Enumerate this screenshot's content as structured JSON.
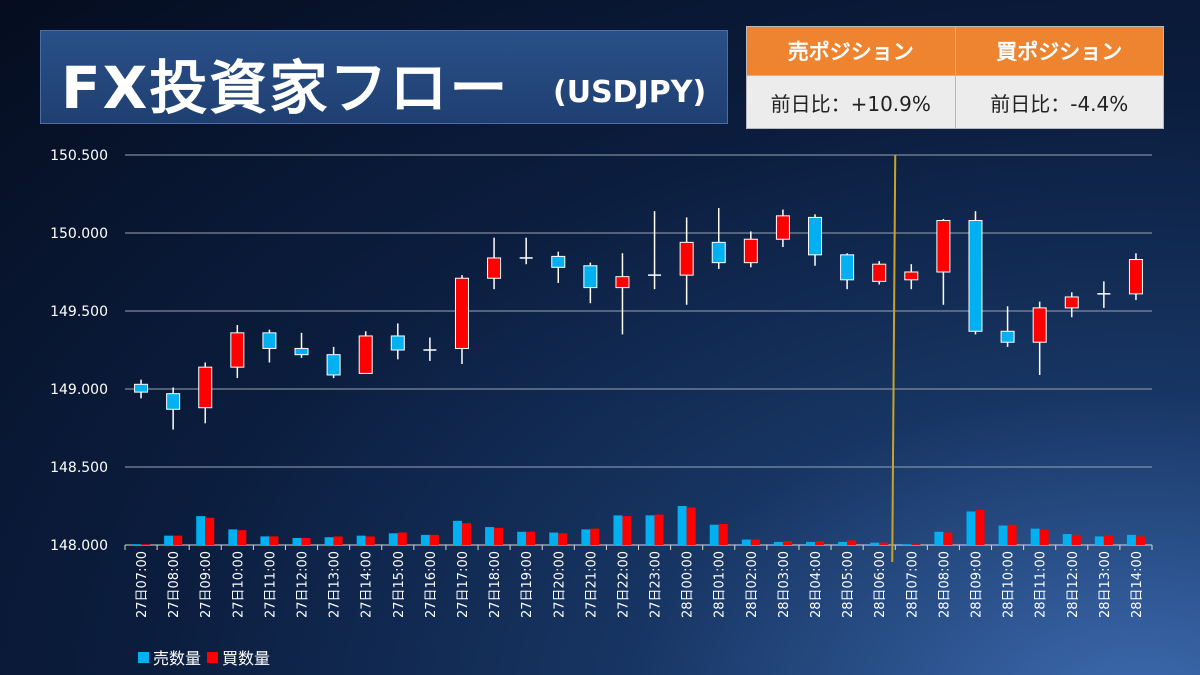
{
  "header": {
    "title": "FX投資家フロー",
    "subtitle": "(USDJPY)"
  },
  "positions": {
    "sell_header": "売ポジション",
    "buy_header": "買ポジション",
    "sell_value": "前日比：+10.9%",
    "buy_value": "前日比：-4.4%"
  },
  "colors": {
    "up": "#ff0000",
    "down": "#00b0f0",
    "marker": "#c9a227"
  },
  "chart_data": {
    "type": "candlestick+bar",
    "categories": [
      "27日07:00",
      "27日08:00",
      "27日09:00",
      "27日10:00",
      "27日11:00",
      "27日12:00",
      "27日13:00",
      "27日14:00",
      "27日15:00",
      "27日16:00",
      "27日17:00",
      "27日18:00",
      "27日19:00",
      "27日20:00",
      "27日21:00",
      "27日22:00",
      "27日23:00",
      "28日00:00",
      "28日01:00",
      "28日02:00",
      "28日03:00",
      "28日04:00",
      "28日05:00",
      "28日06:00",
      "28日07:00",
      "28日08:00",
      "28日09:00",
      "28日10:00",
      "28日11:00",
      "28日12:00",
      "28日13:00",
      "28日14:00"
    ],
    "y_ticks": [
      "150.500",
      "150.000",
      "149.500",
      "149.000",
      "148.500",
      "148.000"
    ],
    "ylim": [
      148.0,
      150.5
    ],
    "ohlc": [
      [
        149.03,
        149.06,
        148.94,
        148.98
      ],
      [
        148.97,
        149.01,
        148.74,
        148.87
      ],
      [
        148.88,
        149.17,
        148.78,
        149.14
      ],
      [
        149.14,
        149.41,
        149.07,
        149.36
      ],
      [
        149.36,
        149.38,
        149.17,
        149.26
      ],
      [
        149.26,
        149.36,
        149.2,
        149.22
      ],
      [
        149.22,
        149.27,
        149.07,
        149.09
      ],
      [
        149.1,
        149.37,
        149.1,
        149.34
      ],
      [
        149.34,
        149.42,
        149.19,
        149.25
      ],
      [
        149.25,
        149.33,
        149.18,
        149.25
      ],
      [
        149.26,
        149.73,
        149.16,
        149.71
      ],
      [
        149.71,
        149.97,
        149.64,
        149.84
      ],
      [
        149.84,
        149.97,
        149.8,
        149.84
      ],
      [
        149.85,
        149.88,
        149.68,
        149.78
      ],
      [
        149.79,
        149.81,
        149.55,
        149.65
      ],
      [
        149.65,
        149.87,
        149.35,
        149.72
      ],
      [
        149.73,
        150.14,
        149.64,
        149.73
      ],
      [
        149.73,
        150.1,
        149.54,
        149.94
      ],
      [
        149.94,
        150.16,
        149.77,
        149.81
      ],
      [
        149.81,
        150.01,
        149.78,
        149.96
      ],
      [
        149.96,
        150.15,
        149.91,
        150.11
      ],
      [
        150.1,
        150.12,
        149.79,
        149.86
      ],
      [
        149.86,
        149.87,
        149.64,
        149.7
      ],
      [
        149.69,
        149.82,
        149.67,
        149.8
      ],
      [
        149.7,
        149.8,
        149.64,
        149.75
      ],
      [
        149.75,
        150.09,
        149.54,
        150.08
      ],
      [
        150.08,
        150.14,
        149.35,
        149.37
      ],
      [
        149.37,
        149.53,
        149.27,
        149.3
      ],
      [
        149.3,
        149.56,
        149.09,
        149.52
      ],
      [
        149.52,
        149.62,
        149.46,
        149.59
      ],
      [
        149.61,
        149.69,
        149.52,
        149.61
      ],
      [
        149.61,
        149.87,
        149.57,
        149.83
      ]
    ],
    "series": [
      {
        "name": "売数量",
        "color": "#00b0f0",
        "values": [
          0.01,
          0.12,
          0.37,
          0.2,
          0.11,
          0.09,
          0.1,
          0.12,
          0.15,
          0.13,
          0.31,
          0.23,
          0.17,
          0.16,
          0.2,
          0.38,
          0.38,
          0.5,
          0.26,
          0.07,
          0.04,
          0.04,
          0.04,
          0.03,
          0.01,
          0.17,
          0.43,
          0.25,
          0.21,
          0.14,
          0.11,
          0.13
        ]
      },
      {
        "name": "買数量",
        "color": "#ff0000",
        "values": [
          0.01,
          0.12,
          0.35,
          0.19,
          0.11,
          0.09,
          0.11,
          0.11,
          0.16,
          0.13,
          0.28,
          0.22,
          0.17,
          0.15,
          0.21,
          0.37,
          0.39,
          0.48,
          0.27,
          0.07,
          0.05,
          0.05,
          0.06,
          0.03,
          0.01,
          0.16,
          0.45,
          0.26,
          0.2,
          0.13,
          0.12,
          0.11
        ]
      }
    ],
    "volume_scale": "relative",
    "marker_after_category": "28日06:00",
    "legend": [
      "売数量",
      "買数量"
    ],
    "legend_position": "bottom-left",
    "grid": true
  }
}
